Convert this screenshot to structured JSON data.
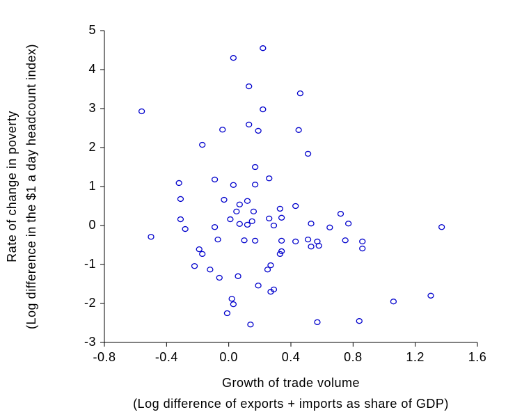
{
  "chart_data": {
    "type": "scatter",
    "xlabel": [
      "Growth of trade volume",
      "(Log difference of exports + imports as share of GDP)"
    ],
    "ylabel": [
      "Rate of change in poverty",
      "(Log difference in the $1 a day headcount index)"
    ],
    "color": "#0000cc",
    "x": [
      0.03,
      0.22,
      0.46,
      0.13,
      -0.56,
      0.22,
      -0.04,
      0.13,
      0.19,
      0.45,
      -0.17,
      0.51,
      0.17,
      -0.09,
      -0.32,
      0.03,
      0.17,
      0.26,
      -0.31,
      -0.03,
      0.07,
      0.12,
      0.05,
      0.16,
      0.33,
      0.43,
      0.72,
      0.01,
      0.34,
      0.26,
      -0.31,
      -0.28,
      -0.09,
      0.07,
      0.12,
      0.15,
      0.29,
      0.53,
      0.65,
      0.77,
      1.37,
      -0.5,
      -0.07,
      0.1,
      0.17,
      0.34,
      0.43,
      0.51,
      0.53,
      0.57,
      0.58,
      0.75,
      0.86,
      0.86,
      -0.19,
      -0.17,
      0.34,
      0.33,
      -0.22,
      -0.12,
      0.27,
      0.25,
      -0.06,
      0.06,
      0.19,
      0.29,
      0.27,
      0.02,
      0.03,
      1.06,
      1.3,
      -0.01,
      0.14,
      0.57,
      0.84
    ],
    "values": [
      4.3,
      4.55,
      3.39,
      3.57,
      2.93,
      2.98,
      2.46,
      2.59,
      2.43,
      2.45,
      2.07,
      1.84,
      1.5,
      1.18,
      1.09,
      1.04,
      1.05,
      1.21,
      0.68,
      0.66,
      0.54,
      0.63,
      0.36,
      0.36,
      0.43,
      0.5,
      0.3,
      0.16,
      0.2,
      0.18,
      0.16,
      -0.09,
      -0.04,
      0.04,
      0.02,
      0.11,
      0.0,
      0.05,
      -0.05,
      0.05,
      -0.04,
      -0.29,
      -0.36,
      -0.38,
      -0.39,
      -0.39,
      -0.41,
      -0.36,
      -0.54,
      -0.41,
      -0.52,
      -0.38,
      -0.41,
      -0.59,
      -0.61,
      -0.73,
      -0.66,
      -0.73,
      -1.04,
      -1.13,
      -1.02,
      -1.13,
      -1.34,
      -1.3,
      -1.54,
      -1.64,
      -1.7,
      -1.88,
      -2.02,
      -1.95,
      -1.8,
      -2.25,
      -2.54,
      -2.48,
      -2.45
    ],
    "xlim": [
      -0.8,
      1.6
    ],
    "xticks": [
      -0.8,
      -0.4,
      {
        "value": 0,
        "label": "0.0"
      },
      0.4,
      0.8,
      1.2,
      1.6
    ],
    "ylim": [
      -3,
      5
    ],
    "yticks": [
      -3,
      -2,
      -1,
      0,
      1,
      2,
      3,
      4,
      5
    ]
  }
}
